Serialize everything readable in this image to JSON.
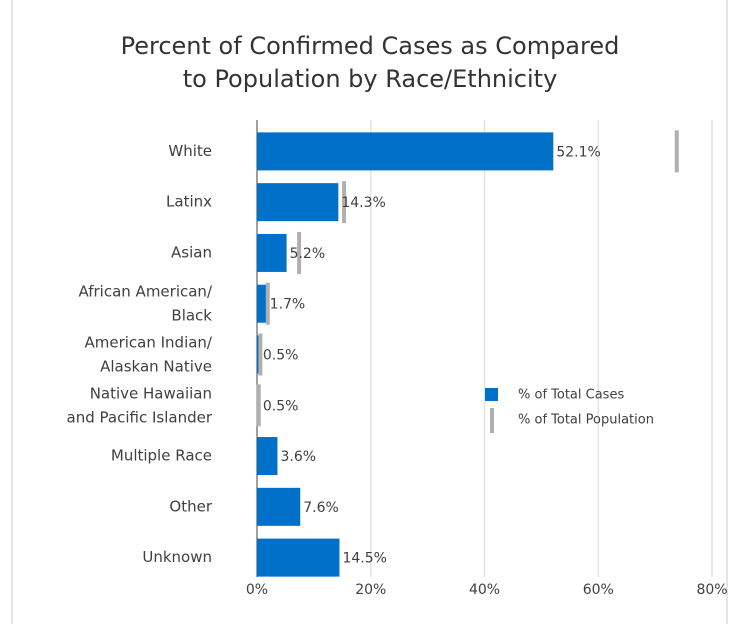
{
  "chart_data": {
    "type": "bar",
    "orientation": "horizontal",
    "title": "Percent of Confirmed Cases as Compared\nto Population by Race/Ethnicity",
    "categories": [
      "White",
      "Latinx",
      "Asian",
      "African American/\nBlack",
      "American Indian/\nAlaskan Native",
      "Native Hawaiian\nand Pacific Islander",
      "Multiple Race",
      "Other",
      "Unknown"
    ],
    "series": [
      {
        "name": "% of Total Cases",
        "color": "#0070c8",
        "values": [
          52.1,
          14.3,
          5.2,
          1.7,
          0.5,
          0.5,
          3.6,
          7.6,
          14.5
        ],
        "value_labels": [
          "52.1%",
          "14.3%",
          "5.2%",
          "1.7%",
          "0.5%",
          "0.5%",
          "3.6%",
          "7.6%",
          "14.5%"
        ]
      },
      {
        "name": "% of Total Population",
        "color": "#b0b0b0",
        "values": [
          73.8,
          15.3,
          7.4,
          1.9,
          0.6,
          0.3,
          null,
          null,
          null
        ]
      }
    ],
    "xlim": [
      0,
      80
    ],
    "xticks": [
      {
        "value": 0,
        "label": "0%"
      },
      {
        "value": 20,
        "label": "20%"
      },
      {
        "value": 40,
        "label": "40%"
      },
      {
        "value": 60,
        "label": "60%"
      },
      {
        "value": 80,
        "label": "80%"
      }
    ],
    "grid": true,
    "legend": "right"
  }
}
